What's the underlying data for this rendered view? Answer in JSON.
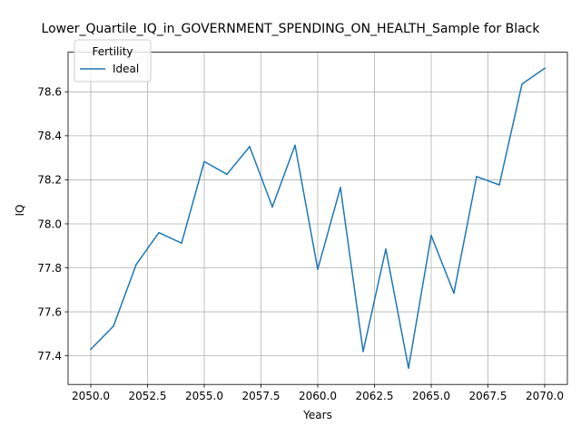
{
  "chart_data": {
    "type": "line",
    "title": "Lower_Quartile_IQ_in_GOVERNMENT_SPENDING_ON_HEALTH_Sample for Black",
    "xlabel": "Years",
    "ylabel": "IQ",
    "xlim": [
      2049,
      2071
    ],
    "ylim": [
      77.27,
      78.78
    ],
    "x_ticks": [
      2050.0,
      2052.5,
      2055.0,
      2057.5,
      2060.0,
      2062.5,
      2065.0,
      2067.5,
      2070.0
    ],
    "x_tick_labels": [
      "2050.0",
      "2052.5",
      "2055.0",
      "2057.5",
      "2060.0",
      "2062.5",
      "2065.0",
      "2067.5",
      "2070.0"
    ],
    "y_ticks": [
      77.4,
      77.6,
      77.8,
      78.0,
      78.2,
      78.4,
      78.6
    ],
    "y_tick_labels": [
      "77.4",
      "77.6",
      "77.8",
      "78.0",
      "78.2",
      "78.4",
      "78.6"
    ],
    "grid": true,
    "legend": {
      "title": "Fertility",
      "position": "top-left"
    },
    "series": [
      {
        "name": "Ideal",
        "color": "#1f77b4",
        "x": [
          2050,
          2051,
          2052,
          2053,
          2054,
          2055,
          2056,
          2057,
          2058,
          2059,
          2060,
          2061,
          2062,
          2063,
          2064,
          2065,
          2066,
          2067,
          2068,
          2069,
          2070
        ],
        "y": [
          77.43,
          77.535,
          77.815,
          77.96,
          77.912,
          78.283,
          78.225,
          78.351,
          78.077,
          78.357,
          77.793,
          78.165,
          77.42,
          77.885,
          77.344,
          77.947,
          77.685,
          78.215,
          78.177,
          78.635,
          78.707
        ]
      }
    ]
  }
}
